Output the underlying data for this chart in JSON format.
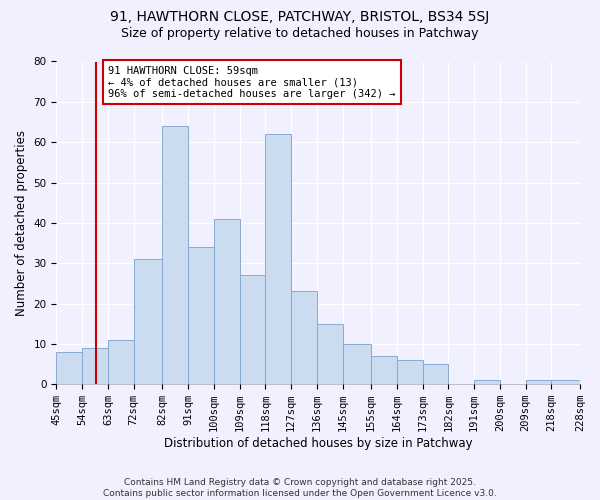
{
  "title_line1": "91, HAWTHORN CLOSE, PATCHWAY, BRISTOL, BS34 5SJ",
  "title_line2": "Size of property relative to detached houses in Patchway",
  "xlabel": "Distribution of detached houses by size in Patchway",
  "ylabel": "Number of detached properties",
  "bar_color": "#ccdcf0",
  "bar_edge_color": "#88aad0",
  "bin_edges": [
    45,
    54,
    63,
    72,
    82,
    91,
    100,
    109,
    118,
    127,
    136,
    145,
    155,
    164,
    173,
    182,
    191,
    200,
    209,
    218,
    228
  ],
  "bar_heights": [
    8,
    9,
    11,
    31,
    64,
    34,
    41,
    27,
    62,
    23,
    15,
    10,
    7,
    6,
    5,
    0,
    1,
    0,
    1,
    1
  ],
  "x_tick_labels": [
    "45sqm",
    "54sqm",
    "63sqm",
    "72sqm",
    "82sqm",
    "91sqm",
    "100sqm",
    "109sqm",
    "118sqm",
    "127sqm",
    "136sqm",
    "145sqm",
    "155sqm",
    "164sqm",
    "173sqm",
    "182sqm",
    "191sqm",
    "200sqm",
    "209sqm",
    "218sqm",
    "228sqm"
  ],
  "ylim": [
    0,
    80
  ],
  "yticks": [
    0,
    10,
    20,
    30,
    40,
    50,
    60,
    70,
    80
  ],
  "vline_x": 59,
  "vline_color": "#cc0000",
  "annotation_text": "91 HAWTHORN CLOSE: 59sqm\n← 4% of detached houses are smaller (13)\n96% of semi-detached houses are larger (342) →",
  "annotation_box_color": "#ffffff",
  "annotation_box_edge": "#cc0000",
  "footer_text": "Contains HM Land Registry data © Crown copyright and database right 2025.\nContains public sector information licensed under the Open Government Licence v3.0.",
  "background_color": "#f0f0ff",
  "grid_color": "#ffffff",
  "title_fontsize": 10,
  "subtitle_fontsize": 9,
  "axis_label_fontsize": 8.5,
  "tick_fontsize": 7.5,
  "annotation_fontsize": 7.5,
  "footer_fontsize": 6.5
}
